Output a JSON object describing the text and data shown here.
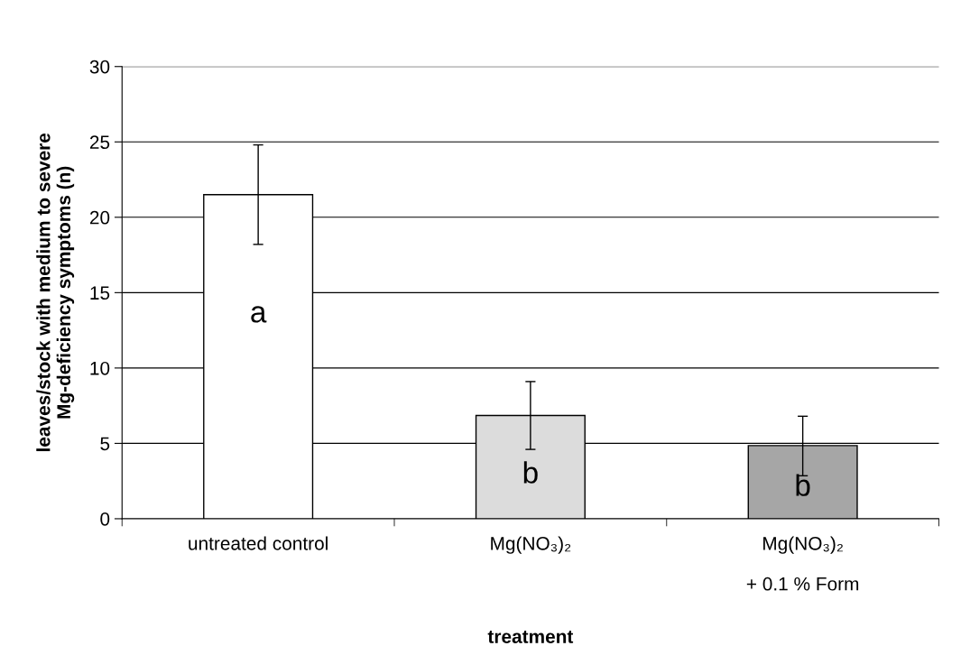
{
  "chart_data": {
    "type": "bar",
    "categories": [
      "untreated control",
      "Mg(NO₃)₂",
      "Mg(NO₃)₂\n\n+ 0.1 % Form"
    ],
    "values": [
      21.5,
      6.85,
      4.85
    ],
    "colors": [
      "#ffffff",
      "#dcdcdc",
      "#a6a6a6"
    ],
    "errors": [
      [
        18.2,
        24.8
      ],
      [
        4.6,
        9.1
      ],
      [
        2.85,
        6.8
      ]
    ],
    "xlabel": "treatment",
    "ylabel": "leaves/stock with medium to severe\nMg-deficiency symptoms (n)",
    "ylim": [
      0,
      30
    ],
    "yticks": [
      0,
      5,
      10,
      15,
      20,
      25,
      30
    ],
    "grid": "y",
    "annotations": [
      "a",
      "b",
      "b"
    ]
  }
}
